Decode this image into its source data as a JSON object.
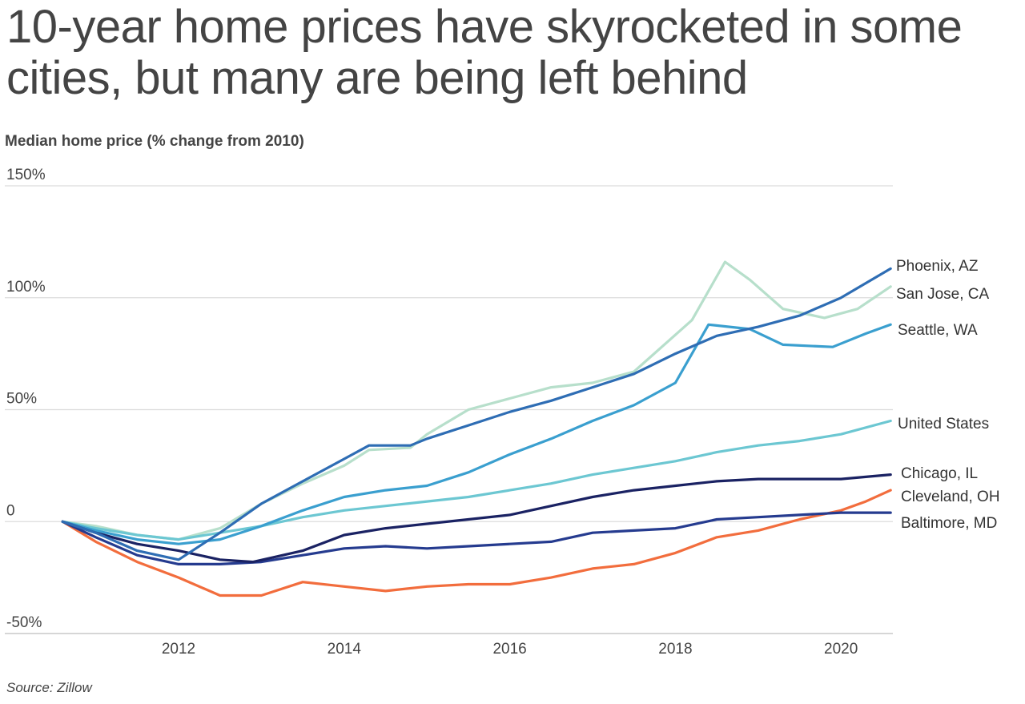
{
  "title": "10-year home prices have skyrocketed in some cities, but many are being left behind",
  "subtitle": "Median home price (% change from 2010)",
  "source": "Source: Zillow",
  "chart_data": {
    "type": "line",
    "title": "10-year home prices have skyrocketed in some cities, but many are being left behind",
    "ylabel": "Median home price (% change from 2010)",
    "xlabel": "",
    "ylim": [
      -50,
      150
    ],
    "xlim": [
      2010.6,
      2020.6
    ],
    "yticks": [
      150,
      100,
      50,
      0,
      -50
    ],
    "ytick_labels": [
      "150%",
      "100%",
      "50%",
      "0",
      "-50%"
    ],
    "xticks": [
      2012,
      2014,
      2016,
      2018,
      2020
    ],
    "xtick_labels": [
      "2012",
      "2014",
      "2016",
      "2018",
      "2020"
    ],
    "grid": true,
    "legend": "direct-labels-right",
    "series": [
      {
        "name": "Phoenix, AZ",
        "color": "#2e6db4",
        "x": [
          2010.6,
          2011,
          2011.5,
          2012,
          2012.5,
          2013,
          2013.5,
          2014,
          2014.3,
          2014.8,
          2015,
          2015.5,
          2016,
          2016.5,
          2017,
          2017.5,
          2018,
          2018.5,
          2019,
          2019.5,
          2020,
          2020.6
        ],
        "values": [
          0,
          -5,
          -13,
          -17,
          -5,
          8,
          18,
          28,
          34,
          34,
          37,
          43,
          49,
          54,
          60,
          66,
          75,
          83,
          87,
          92,
          100,
          113
        ]
      },
      {
        "name": "San Jose, CA",
        "color": "#b7dfcb",
        "x": [
          2010.6,
          2011,
          2011.5,
          2012,
          2012.5,
          2013,
          2013.5,
          2014,
          2014.3,
          2014.8,
          2015,
          2015.5,
          2016,
          2016.5,
          2017,
          2017.5,
          2018.2,
          2018.6,
          2018.9,
          2019.3,
          2019.8,
          2020.2,
          2020.6
        ],
        "values": [
          0,
          -2,
          -6,
          -8,
          -3,
          8,
          17,
          25,
          32,
          33,
          39,
          50,
          55,
          60,
          62,
          67,
          90,
          116,
          108,
          95,
          91,
          95,
          105
        ]
      },
      {
        "name": "Seattle, WA",
        "color": "#3a9fcf",
        "x": [
          2010.6,
          2011,
          2011.5,
          2012,
          2012.5,
          2013,
          2013.5,
          2014,
          2014.5,
          2015,
          2015.5,
          2016,
          2016.5,
          2017,
          2017.5,
          2018,
          2018.4,
          2018.9,
          2019.3,
          2019.9,
          2020.3,
          2020.6
        ],
        "values": [
          0,
          -4,
          -8,
          -10,
          -8,
          -2,
          5,
          11,
          14,
          16,
          22,
          30,
          37,
          45,
          52,
          62,
          88,
          86,
          79,
          78,
          84,
          88
        ]
      },
      {
        "name": "United States",
        "color": "#6cc7d2",
        "x": [
          2010.6,
          2011,
          2011.5,
          2012,
          2012.5,
          2013,
          2013.5,
          2014,
          2014.5,
          2015,
          2015.5,
          2016,
          2016.5,
          2017,
          2017.5,
          2018,
          2018.5,
          2019,
          2019.5,
          2020,
          2020.6
        ],
        "values": [
          0,
          -3,
          -6,
          -8,
          -5,
          -2,
          2,
          5,
          7,
          9,
          11,
          14,
          17,
          21,
          24,
          27,
          31,
          34,
          36,
          39,
          45
        ]
      },
      {
        "name": "Chicago, IL",
        "color": "#1a2263",
        "x": [
          2010.6,
          2011,
          2011.5,
          2012,
          2012.5,
          2012.9,
          2013.5,
          2014,
          2014.5,
          2015,
          2015.5,
          2016,
          2016.5,
          2017,
          2017.5,
          2018,
          2018.5,
          2019,
          2019.5,
          2020,
          2020.6
        ],
        "values": [
          0,
          -5,
          -10,
          -13,
          -17,
          -18,
          -13,
          -6,
          -3,
          -1,
          1,
          3,
          7,
          11,
          14,
          16,
          18,
          19,
          19,
          19,
          21
        ]
      },
      {
        "name": "Cleveland, OH",
        "color": "#f26d3d",
        "x": [
          2010.6,
          2011,
          2011.5,
          2012,
          2012.5,
          2013,
          2013.5,
          2014,
          2014.5,
          2015,
          2015.5,
          2016,
          2016.5,
          2017,
          2017.5,
          2018,
          2018.5,
          2019,
          2019.5,
          2020,
          2020.3,
          2020.6
        ],
        "values": [
          0,
          -9,
          -18,
          -25,
          -33,
          -33,
          -27,
          -29,
          -31,
          -29,
          -28,
          -28,
          -25,
          -21,
          -19,
          -14,
          -7,
          -4,
          1,
          5,
          9,
          14
        ]
      },
      {
        "name": "Baltimore, MD",
        "color": "#253b8f",
        "x": [
          2010.6,
          2011,
          2011.5,
          2012,
          2012.5,
          2013,
          2013.5,
          2014,
          2014.5,
          2015,
          2015.5,
          2016,
          2016.5,
          2017,
          2017.5,
          2018,
          2018.5,
          2019,
          2019.5,
          2020,
          2020.6
        ],
        "values": [
          0,
          -7,
          -15,
          -19,
          -19,
          -18,
          -15,
          -12,
          -11,
          -12,
          -11,
          -10,
          -9,
          -5,
          -4,
          -3,
          1,
          2,
          3,
          4,
          4
        ]
      }
    ]
  }
}
